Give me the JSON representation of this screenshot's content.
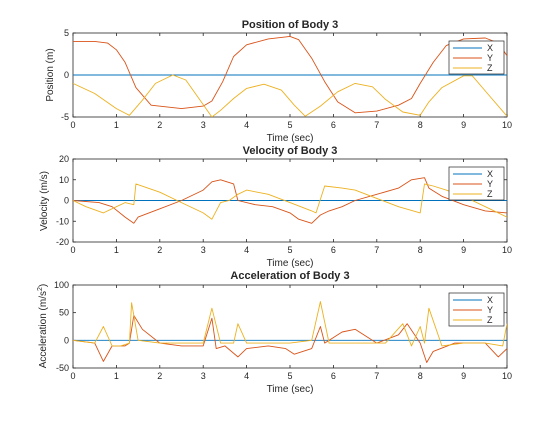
{
  "colors": {
    "X": "#0072bd",
    "Y": "#d95319",
    "Z": "#edb120",
    "axis": "#262626"
  },
  "chart_data": [
    {
      "type": "line",
      "title": "Position of Body 3",
      "xlabel": "Time (sec)",
      "ylabel": "Position (m)",
      "xlim": [
        0,
        10
      ],
      "ylim": [
        -5,
        5
      ],
      "xticks": [
        0,
        1,
        2,
        3,
        4,
        5,
        6,
        7,
        8,
        9,
        10
      ],
      "yticks": [
        -5,
        0,
        5
      ],
      "legend": [
        "X",
        "Y",
        "Z"
      ],
      "legend_position": "top-right",
      "series": [
        {
          "name": "X",
          "x": [
            0,
            10
          ],
          "y": [
            0,
            0
          ]
        },
        {
          "name": "Y",
          "x": [
            0,
            0.5,
            0.8,
            1.0,
            1.2,
            1.45,
            1.8,
            2.5,
            3.0,
            3.2,
            3.45,
            3.7,
            4.0,
            4.5,
            5.0,
            5.2,
            5.5,
            5.8,
            6.1,
            6.5,
            7.0,
            7.5,
            7.8,
            8.0,
            8.3,
            8.6,
            9.0,
            9.5,
            9.8,
            10
          ],
          "y": [
            4,
            4,
            3.8,
            3,
            1.5,
            -1.5,
            -3.6,
            -4,
            -3.7,
            -3.1,
            -0.8,
            2.2,
            3.6,
            4.3,
            4.6,
            4.2,
            2,
            -0.8,
            -3.2,
            -4.5,
            -4.3,
            -3.6,
            -2.8,
            -1,
            1.5,
            3.5,
            4.3,
            4.4,
            3.8,
            2.3
          ]
        },
        {
          "name": "Z",
          "x": [
            0,
            0.5,
            1.0,
            1.3,
            1.6,
            1.9,
            2.3,
            2.6,
            2.9,
            3.2,
            3.4,
            3.7,
            4.0,
            4.4,
            4.8,
            5.1,
            5.35,
            5.7,
            6.1,
            6.5,
            6.9,
            7.2,
            7.6,
            8.0,
            8.2,
            8.5,
            9.0,
            9.2,
            9.5,
            10
          ],
          "y": [
            -1,
            -2.2,
            -4,
            -4.8,
            -3,
            -1,
            0,
            -0.6,
            -2.8,
            -5,
            -4.2,
            -2.8,
            -1.6,
            -1.1,
            -1.8,
            -3.6,
            -4.9,
            -3.7,
            -2,
            -1,
            -1.4,
            -2.9,
            -4.4,
            -4.8,
            -3.2,
            -1.5,
            -0.1,
            -0.1,
            -1.9,
            -4.9
          ]
        }
      ]
    },
    {
      "type": "line",
      "title": "Velocity of Body 3",
      "xlabel": "Time (sec)",
      "ylabel": "Velocity (m/s)",
      "xlim": [
        0,
        10
      ],
      "ylim": [
        -20,
        20
      ],
      "xticks": [
        0,
        1,
        2,
        3,
        4,
        5,
        6,
        7,
        8,
        9,
        10
      ],
      "yticks": [
        -20,
        -10,
        0,
        10,
        20
      ],
      "legend": [
        "X",
        "Y",
        "Z"
      ],
      "legend_position": "top-right",
      "series": [
        {
          "name": "X",
          "x": [
            0,
            10
          ],
          "y": [
            0,
            0
          ]
        },
        {
          "name": "Y",
          "x": [
            0,
            0.6,
            0.9,
            1.2,
            1.4,
            1.5,
            2.0,
            2.5,
            3.0,
            3.2,
            3.4,
            3.7,
            3.8,
            4.2,
            4.6,
            5.0,
            5.2,
            5.5,
            5.7,
            5.9,
            6.2,
            6.5,
            7.0,
            7.5,
            7.8,
            8.1,
            8.2,
            8.5,
            9.0,
            9.5,
            10
          ],
          "y": [
            0,
            -1,
            -3,
            -8,
            -11,
            -8,
            -4,
            0,
            5,
            9,
            10,
            8,
            0,
            -2,
            -3,
            -6,
            -9,
            -11,
            -7,
            -5,
            -3,
            0,
            3,
            6,
            10,
            11,
            6,
            2,
            -2,
            -5,
            -6
          ]
        },
        {
          "name": "Z",
          "x": [
            0,
            0.3,
            0.7,
            1.0,
            1.2,
            1.4,
            1.45,
            2.0,
            2.5,
            3.0,
            3.2,
            3.4,
            3.6,
            3.8,
            4.0,
            4.5,
            5.0,
            5.5,
            5.6,
            5.8,
            6.2,
            6.5,
            7.0,
            7.5,
            8.0,
            8.1,
            8.3,
            8.6,
            9.0,
            9.5,
            10
          ],
          "y": [
            0,
            -3,
            -6,
            -3,
            -1,
            -2,
            8,
            4,
            -1,
            -6,
            -9,
            -1,
            0,
            3,
            5,
            3,
            -1,
            -5,
            -6,
            7,
            6,
            5,
            1,
            -3,
            -6,
            8,
            7,
            5,
            2,
            -3,
            -8
          ]
        }
      ]
    },
    {
      "type": "line",
      "title": "Acceleration of Body 3",
      "xlabel": "Time (sec)",
      "ylabel": "Acceleration (m/s2)",
      "xlim": [
        0,
        10
      ],
      "ylim": [
        -50,
        100
      ],
      "xticks": [
        0,
        1,
        2,
        3,
        4,
        5,
        6,
        7,
        8,
        9,
        10
      ],
      "yticks": [
        -50,
        0,
        50,
        100
      ],
      "legend": [
        "X",
        "Y",
        "Z"
      ],
      "legend_position": "top-right",
      "series": [
        {
          "name": "X",
          "x": [
            0,
            10
          ],
          "y": [
            0,
            0
          ]
        },
        {
          "name": "Y",
          "x": [
            0,
            0.5,
            0.7,
            0.9,
            1.2,
            1.3,
            1.4,
            1.6,
            2.0,
            2.5,
            3.0,
            3.2,
            3.3,
            3.5,
            3.8,
            4.0,
            4.5,
            4.9,
            5.1,
            5.5,
            5.7,
            5.8,
            6.2,
            6.5,
            7.0,
            7.5,
            7.7,
            8.0,
            8.15,
            8.3,
            8.8,
            9.5,
            9.8,
            10
          ],
          "y": [
            0,
            -5,
            -38,
            -10,
            -10,
            -5,
            45,
            20,
            -5,
            -10,
            -10,
            40,
            -15,
            -10,
            -30,
            -15,
            -10,
            -15,
            -25,
            -15,
            25,
            -5,
            15,
            20,
            -5,
            10,
            30,
            -5,
            -40,
            -20,
            -5,
            -5,
            -30,
            -15
          ]
        },
        {
          "name": "Z",
          "x": [
            0,
            0.5,
            0.7,
            0.9,
            1.1,
            1.3,
            1.35,
            1.5,
            2.0,
            2.5,
            3.0,
            3.2,
            3.4,
            3.7,
            3.8,
            4.0,
            4.5,
            5.0,
            5.5,
            5.7,
            5.9,
            6.3,
            6.8,
            7.2,
            7.6,
            7.8,
            8.0,
            8.1,
            8.2,
            8.5,
            9.0,
            9.5,
            9.9,
            10
          ],
          "y": [
            0,
            -5,
            25,
            -10,
            -10,
            -5,
            68,
            0,
            -5,
            -5,
            -5,
            58,
            -5,
            -5,
            30,
            -5,
            -5,
            -5,
            0,
            70,
            -5,
            -5,
            -5,
            -5,
            30,
            -10,
            25,
            -5,
            58,
            -10,
            -5,
            -5,
            -10,
            30
          ]
        }
      ]
    }
  ]
}
